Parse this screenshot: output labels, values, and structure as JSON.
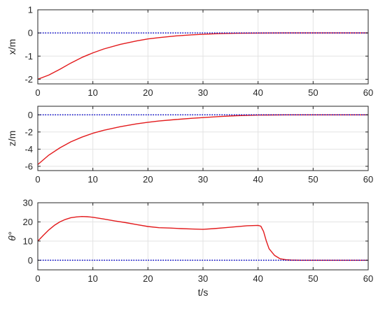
{
  "chart_data": [
    {
      "type": "line",
      "ylabel": "x/m",
      "xlabel": "",
      "xlim": [
        0,
        60
      ],
      "ylim": [
        -2.2,
        1
      ],
      "xticks": [
        0,
        10,
        20,
        30,
        40,
        50,
        60
      ],
      "yticks": [
        -2,
        -1,
        0,
        1
      ],
      "grid": true,
      "series": [
        {
          "color": "#e31a1c",
          "style": "solid",
          "x": [
            0,
            2,
            4,
            6,
            8,
            10,
            12,
            15,
            18,
            20,
            22,
            25,
            28,
            30,
            33,
            36,
            40,
            45,
            50,
            55,
            60
          ],
          "y": [
            -2.0,
            -1.82,
            -1.57,
            -1.3,
            -1.06,
            -0.86,
            -0.69,
            -0.49,
            -0.34,
            -0.26,
            -0.2,
            -0.13,
            -0.08,
            -0.06,
            -0.03,
            -0.015,
            -0.005,
            0,
            0,
            0,
            0
          ]
        },
        {
          "color": "#0000cc",
          "style": "dotted",
          "x": [
            0,
            60
          ],
          "y": [
            0,
            0
          ]
        }
      ]
    },
    {
      "type": "line",
      "ylabel": "z/m",
      "xlabel": "",
      "xlim": [
        0,
        60
      ],
      "ylim": [
        -6.5,
        1
      ],
      "xticks": [
        0,
        10,
        20,
        30,
        40,
        50,
        60
      ],
      "yticks": [
        -6,
        -4,
        -2,
        0
      ],
      "grid": true,
      "series": [
        {
          "color": "#e31a1c",
          "style": "solid",
          "x": [
            0,
            2,
            4,
            6,
            8,
            10,
            12,
            15,
            18,
            20,
            22,
            25,
            28,
            30,
            33,
            36,
            40,
            45,
            50,
            55,
            60
          ],
          "y": [
            -5.8,
            -4.7,
            -3.85,
            -3.15,
            -2.6,
            -2.15,
            -1.8,
            -1.38,
            -1.05,
            -0.87,
            -0.72,
            -0.55,
            -0.4,
            -0.32,
            -0.2,
            -0.1,
            -0.03,
            0,
            0,
            0,
            0
          ]
        },
        {
          "color": "#0000cc",
          "style": "dotted",
          "x": [
            0,
            60
          ],
          "y": [
            0,
            0
          ]
        }
      ]
    },
    {
      "type": "line",
      "ylabel": "θ°",
      "xlabel": "t/s",
      "xlim": [
        0,
        60
      ],
      "ylim": [
        -5,
        30
      ],
      "xticks": [
        0,
        10,
        20,
        30,
        40,
        50,
        60
      ],
      "yticks": [
        0,
        10,
        20,
        30
      ],
      "grid": true,
      "series": [
        {
          "color": "#e31a1c",
          "style": "solid",
          "x": [
            0,
            1,
            2,
            3,
            4,
            5,
            6,
            7,
            8,
            9,
            10,
            12,
            14,
            16,
            18,
            20,
            22,
            24,
            26,
            28,
            30,
            32,
            34,
            36,
            38,
            40,
            40.5,
            41,
            41.5,
            42,
            43,
            44,
            45,
            46,
            48,
            50,
            55,
            60
          ],
          "y": [
            10.0,
            13.0,
            15.8,
            18.2,
            20.0,
            21.3,
            22.2,
            22.6,
            22.8,
            22.7,
            22.4,
            21.5,
            20.5,
            19.6,
            18.6,
            17.6,
            17.0,
            16.8,
            16.5,
            16.3,
            16.1,
            16.5,
            17.0,
            17.5,
            18.0,
            18.2,
            17.8,
            15.0,
            10.0,
            6.0,
            2.5,
            0.8,
            0.3,
            0.1,
            0,
            0,
            0,
            0
          ]
        },
        {
          "color": "#0000cc",
          "style": "dotted",
          "x": [
            0,
            60
          ],
          "y": [
            0,
            0
          ]
        }
      ]
    }
  ]
}
